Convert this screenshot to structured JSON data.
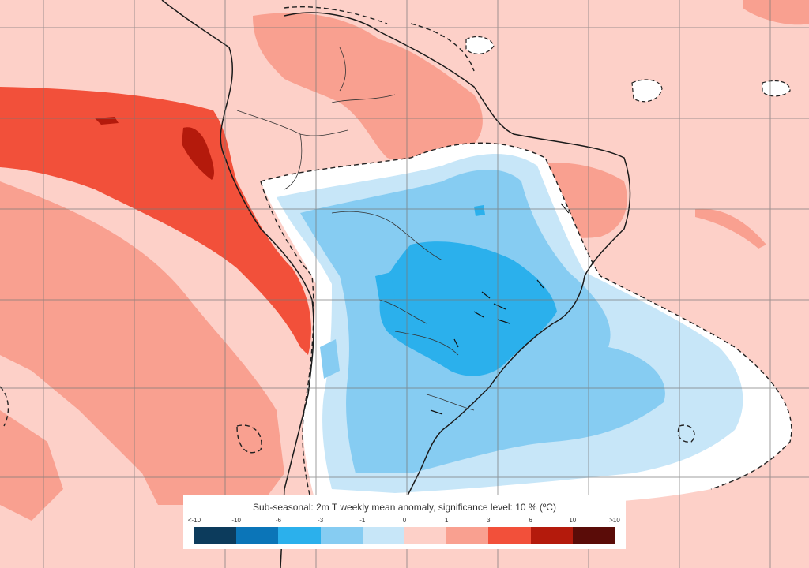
{
  "legend": {
    "title": "Sub-seasonal: 2m T weekly mean anomaly, significance level: 10 % (ºC)",
    "labels": [
      "<-10",
      "-10",
      "-6",
      "-3",
      "-1",
      "0",
      "1",
      "3",
      "6",
      "10",
      ">10"
    ],
    "colors": [
      "#0c3b5c",
      "#0b75b8",
      "#2bb0ec",
      "#86ccf2",
      "#c7e6f8",
      "#fdd0c8",
      "#f9a090",
      "#f2503a",
      "#b41a0c",
      "#5a0c08"
    ]
  },
  "map": {
    "region": "South America",
    "ocean_base_color": "#fdd0c8",
    "land_base_color": "#fdd0c8",
    "grid_color": "#777777"
  }
}
